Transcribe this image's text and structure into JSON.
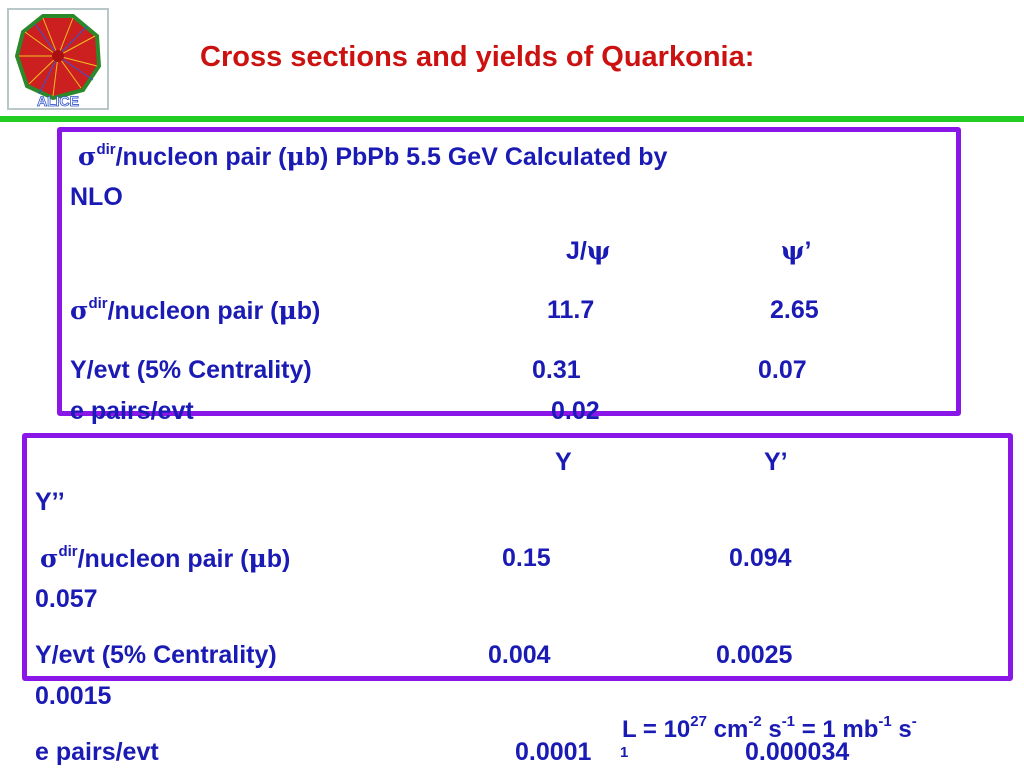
{
  "title": "Cross sections and yields of Quarkonia:",
  "logo": {
    "label": "ALICE"
  },
  "charmonium": {
    "heading_symbol": "σ",
    "heading_sup": "dir",
    "heading_part1": "/nucleon pair (",
    "heading_mu": "μ",
    "heading_part2": "b) PbPb  5.5 GeV Calculated by",
    "heading_line2": "NLO",
    "col1_prefix": "J/",
    "col1_symbol": "ψ",
    "col2_symbol": "ψ",
    "col2_suffix": "’",
    "row1_symbol": "σ",
    "row1_sup": "dir",
    "row1_part1": "/nucleon pair (",
    "row1_mu": "μ",
    "row1_part2": "b)",
    "row1_v1": "11.7",
    "row1_v2": "2.65",
    "row2_label": "Y/evt   (5% Centrality)",
    "row2_v1": "0.31",
    "row2_v2": "0.07",
    "row3_label": "e pairs/evt",
    "row3_v1": "0.02"
  },
  "bottomonium": {
    "col1": "Y",
    "col2": "Y’",
    "col3": "Y’’",
    "row1_symbol": "σ",
    "row1_sup": "dir",
    "row1_part1": "/nucleon pair (",
    "row1_mu": "μ",
    "row1_part2": "b)",
    "row1_v1": "0.15",
    "row1_v2": "0.094",
    "row1_v3": "0.057",
    "row2_label": "Y/evt   (5% Centrality)",
    "row2_v1": "0.004",
    "row2_v2": "0.0025",
    "row2_v3": "0.0015",
    "row3_label": "e pairs/evt",
    "row3_v1": "0.0001",
    "row3_v2": "0.000034"
  },
  "luminosity": {
    "part1": "L = 10",
    "exp1": "27",
    "part2": " cm",
    "exp2": "-2",
    "part3": " s",
    "exp3": "-1",
    "part4": " = 1 mb",
    "exp4": "-1",
    "part5": " s",
    "exp5": "-",
    "wrap": "1"
  }
}
